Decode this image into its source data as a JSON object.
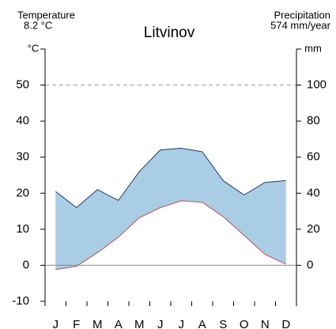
{
  "chart_data": {
    "type": "climate",
    "title": "Litvinov",
    "left_header": "Temperature",
    "left_value": "8.2 °C",
    "right_header": "Precipitation",
    "right_value": "574 mm/year",
    "ylabel": "°C",
    "y2label": "mm",
    "categories": [
      "J",
      "F",
      "M",
      "A",
      "M",
      "J",
      "J",
      "A",
      "S",
      "O",
      "N",
      "D"
    ],
    "series": [
      {
        "name": "Temperature",
        "color": "#c0504d",
        "values": [
          -1.2,
          -0.3,
          3.5,
          7.8,
          13.2,
          16.0,
          17.9,
          17.5,
          13.5,
          8.3,
          3.0,
          0.3
        ]
      },
      {
        "name": "Precipitation",
        "color": "#1f3b73",
        "axis": "y2",
        "values": [
          41,
          32,
          42,
          36,
          52,
          64,
          65,
          63,
          47,
          39,
          46,
          47
        ]
      }
    ],
    "fill_color": "#a9cde5",
    "ylim": [
      -10,
      60
    ],
    "yticks": [
      -10,
      0,
      10,
      20,
      30,
      40,
      50
    ],
    "y2lim": [
      -20,
      120
    ],
    "y2ticks": [
      0,
      20,
      40,
      60,
      80,
      100
    ],
    "dashed_line": 50
  }
}
